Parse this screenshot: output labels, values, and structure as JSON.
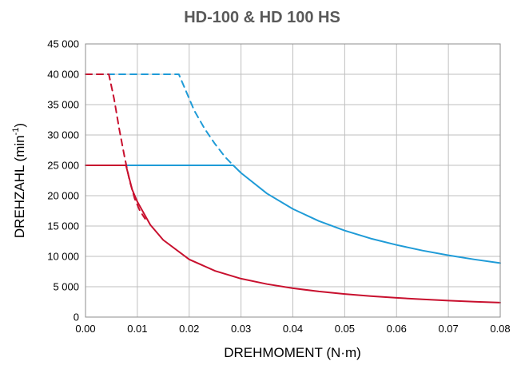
{
  "chart_data": {
    "type": "line",
    "title": "HD-100 & HD 100 HS",
    "xlabel": "DREHMOMENT (N·m)",
    "ylabel": "DREHZAHL (min",
    "ylabel_sup": "-1",
    "ylabel_end": ")",
    "xlim": [
      0,
      0.08
    ],
    "ylim": [
      0,
      45000
    ],
    "x_ticks": [
      0,
      0.01,
      0.02,
      0.03,
      0.04,
      0.05,
      0.06,
      0.07,
      0.08
    ],
    "x_tick_labels": [
      "0.00",
      "0.01",
      "0.02",
      "0.03",
      "0.04",
      "0.05",
      "0.06",
      "0.07",
      "0.08"
    ],
    "y_ticks": [
      0,
      5000,
      10000,
      15000,
      20000,
      25000,
      30000,
      35000,
      40000,
      45000
    ],
    "y_tick_labels": [
      "0",
      "5 000",
      "10 000",
      "15 000",
      "20 000",
      "25 000",
      "30 000",
      "35 000",
      "40 000",
      "45 000"
    ],
    "grid": true,
    "series": [
      {
        "color": "#1f9bd7",
        "dash": "",
        "x": [
          0.0,
          0.02,
          0.0285,
          0.03,
          0.035,
          0.04,
          0.045,
          0.05,
          0.055,
          0.06,
          0.065,
          0.07,
          0.075,
          0.08
        ],
        "y": [
          25000,
          25000,
          25000,
          23750,
          20360,
          17810,
          15830,
          14250,
          12950,
          11880,
          10960,
          10180,
          9500,
          8900
        ]
      },
      {
        "color": "#1f9bd7",
        "dash": "8,6",
        "x": [
          0.0,
          0.018,
          0.0195,
          0.021,
          0.023,
          0.025,
          0.027,
          0.0285
        ],
        "y": [
          40000,
          40000,
          37000,
          34000,
          31000,
          28500,
          26300,
          25000
        ]
      },
      {
        "color": "#c8102e",
        "dash": "",
        "x": [
          0.0,
          0.0078,
          0.009,
          0.01,
          0.0125,
          0.015,
          0.02,
          0.025,
          0.03,
          0.035,
          0.04,
          0.045,
          0.05,
          0.055,
          0.06,
          0.065,
          0.07,
          0.075,
          0.08
        ],
        "y": [
          25000,
          25000,
          21000,
          19000,
          15200,
          12700,
          9500,
          7600,
          6330,
          5430,
          4750,
          4220,
          3800,
          3450,
          3170,
          2920,
          2710,
          2530,
          2380
        ]
      },
      {
        "color": "#c8102e",
        "dash": "8,6",
        "x": [
          0.0,
          0.0045,
          0.0055,
          0.0065,
          0.0075,
          0.0085,
          0.0095,
          0.0105,
          0.0115
        ],
        "y": [
          40000,
          40000,
          36000,
          31000,
          26500,
          22500,
          19500,
          17500,
          16200
        ]
      }
    ]
  }
}
